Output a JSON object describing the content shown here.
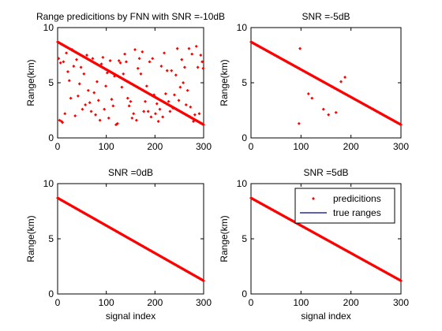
{
  "chart_data": [
    {
      "type": "scatter",
      "title": "Range predicitions by FNN with  SNR =-10dB",
      "xlabel": "",
      "ylabel": "Range(km)",
      "xlim": [
        0,
        300
      ],
      "ylim": [
        0,
        10
      ],
      "xticks": [
        "0",
        "100",
        "200",
        "300"
      ],
      "yticks": [
        "0",
        "5",
        "10"
      ],
      "legend": null,
      "series": [
        {
          "marker": "point",
          "color": "#ff0000",
          "trend": {
            "x_start": 0,
            "x_end": 300,
            "y_start": 8.7,
            "y_end": 1.2,
            "count": 300
          },
          "outliers": [
            [
              2,
              7.2
            ],
            [
              4,
              1.6
            ],
            [
              6,
              6.8
            ],
            [
              8,
              1.5
            ],
            [
              10,
              1.4
            ],
            [
              12,
              6.9
            ],
            [
              15,
              2.2
            ],
            [
              18,
              7.7
            ],
            [
              21,
              6.0
            ],
            [
              24,
              5.2
            ],
            [
              27,
              3.6
            ],
            [
              30,
              8.0
            ],
            [
              33,
              6.5
            ],
            [
              36,
              2.0
            ],
            [
              39,
              7.1
            ],
            [
              42,
              3.8
            ],
            [
              45,
              4.9
            ],
            [
              48,
              6.4
            ],
            [
              51,
              2.6
            ],
            [
              54,
              5.8
            ],
            [
              57,
              3.0
            ],
            [
              60,
              7.5
            ],
            [
              63,
              4.3
            ],
            [
              66,
              3.2
            ],
            [
              69,
              2.4
            ],
            [
              72,
              7.2
            ],
            [
              75,
              4.1
            ],
            [
              78,
              2.1
            ],
            [
              81,
              5.1
            ],
            [
              84,
              3.4
            ],
            [
              87,
              1.6
            ],
            [
              90,
              6.7
            ],
            [
              93,
              7.3
            ],
            [
              96,
              2.6
            ],
            [
              99,
              4.7
            ],
            [
              102,
              5.9
            ],
            [
              105,
              1.8
            ],
            [
              108,
              7.0
            ],
            [
              111,
              3.5
            ],
            [
              114,
              2.9
            ],
            [
              117,
              5.6
            ],
            [
              120,
              1.2
            ],
            [
              123,
              1.3
            ],
            [
              126,
              7.0
            ],
            [
              129,
              6.8
            ],
            [
              132,
              4.6
            ],
            [
              135,
              5.8
            ],
            [
              138,
              7.6
            ],
            [
              141,
              6.9
            ],
            [
              144,
              3.6
            ],
            [
              147,
              2.9
            ],
            [
              150,
              3.3
            ],
            [
              153,
              1.8
            ],
            [
              156,
              2.2
            ],
            [
              159,
              8.0
            ],
            [
              162,
              1.6
            ],
            [
              165,
              6.3
            ],
            [
              168,
              7.2
            ],
            [
              171,
              5.8
            ],
            [
              174,
              7.8
            ],
            [
              177,
              2.4
            ],
            [
              180,
              3.3
            ],
            [
              183,
              4.7
            ],
            [
              186,
              2.4
            ],
            [
              189,
              6.9
            ],
            [
              192,
              1.9
            ],
            [
              195,
              7.2
            ],
            [
              198,
              3.9
            ],
            [
              201,
              2.2
            ],
            [
              204,
              3.1
            ],
            [
              207,
              1.5
            ],
            [
              210,
              2.6
            ],
            [
              213,
              6.5
            ],
            [
              216,
              1.9
            ],
            [
              219,
              7.7
            ],
            [
              222,
              4.0
            ],
            [
              225,
              6.1
            ],
            [
              228,
              3.3
            ],
            [
              231,
              2.4
            ],
            [
              234,
              6.1
            ],
            [
              237,
              2.7
            ],
            [
              240,
              3.9
            ],
            [
              243,
              5.7
            ],
            [
              246,
              8.1
            ],
            [
              249,
              3.4
            ],
            [
              252,
              4.6
            ],
            [
              255,
              7.1
            ],
            [
              258,
              5.0
            ],
            [
              261,
              6.4
            ],
            [
              264,
              3.0
            ],
            [
              267,
              4.3
            ],
            [
              270,
              8.1
            ],
            [
              273,
              2.8
            ],
            [
              276,
              7.6
            ],
            [
              279,
              1.5
            ],
            [
              282,
              2.1
            ],
            [
              285,
              8.3
            ],
            [
              288,
              6.4
            ],
            [
              291,
              2.2
            ],
            [
              294,
              7.5
            ],
            [
              297,
              6.9
            ],
            [
              299,
              6.3
            ]
          ]
        }
      ]
    },
    {
      "type": "scatter",
      "title": "SNR =-5dB",
      "xlabel": "",
      "ylabel": "Range(km)",
      "xlim": [
        0,
        300
      ],
      "ylim": [
        0,
        10
      ],
      "xticks": [
        "0",
        "100",
        "200",
        "300"
      ],
      "yticks": [
        "0",
        "5",
        "10"
      ],
      "legend": null,
      "series": [
        {
          "marker": "point",
          "color": "#ff0000",
          "trend": {
            "x_start": 0,
            "x_end": 300,
            "y_start": 8.7,
            "y_end": 1.2,
            "count": 300
          },
          "outliers": [
            [
              96,
              1.3
            ],
            [
              98,
              8.1
            ],
            [
              115,
              4.0
            ],
            [
              122,
              3.6
            ],
            [
              145,
              2.6
            ],
            [
              155,
              2.1
            ],
            [
              170,
              2.3
            ],
            [
              180,
              5.1
            ],
            [
              188,
              5.5
            ]
          ]
        }
      ]
    },
    {
      "type": "scatter",
      "title": "SNR =0dB",
      "xlabel": "signal index",
      "ylabel": "Range(km)",
      "xlim": [
        0,
        300
      ],
      "ylim": [
        0,
        10
      ],
      "xticks": [
        "0",
        "100",
        "200",
        "300"
      ],
      "yticks": [
        "0",
        "5",
        "10"
      ],
      "legend": null,
      "series": [
        {
          "marker": "point",
          "color": "#ff0000",
          "trend": {
            "x_start": 0,
            "x_end": 300,
            "y_start": 8.7,
            "y_end": 1.2,
            "count": 300
          },
          "outliers": []
        }
      ]
    },
    {
      "type": "scatter",
      "title": "SNR =5dB",
      "xlabel": "signal index",
      "ylabel": "Range(km)",
      "xlim": [
        0,
        300
      ],
      "ylim": [
        0,
        10
      ],
      "xticks": [
        "0",
        "100",
        "200",
        "300"
      ],
      "yticks": [
        "0",
        "5",
        "10"
      ],
      "legend": {
        "placement": "top-right",
        "entries": [
          {
            "label": "predicitions",
            "kind": "marker",
            "color": "#ff0000"
          },
          {
            "label": "true ranges",
            "kind": "line",
            "color": "#000080"
          }
        ]
      },
      "series": [
        {
          "marker": "point",
          "color": "#ff0000",
          "trend": {
            "x_start": 0,
            "x_end": 300,
            "y_start": 8.7,
            "y_end": 1.2,
            "count": 300
          },
          "outliers": []
        }
      ]
    }
  ]
}
